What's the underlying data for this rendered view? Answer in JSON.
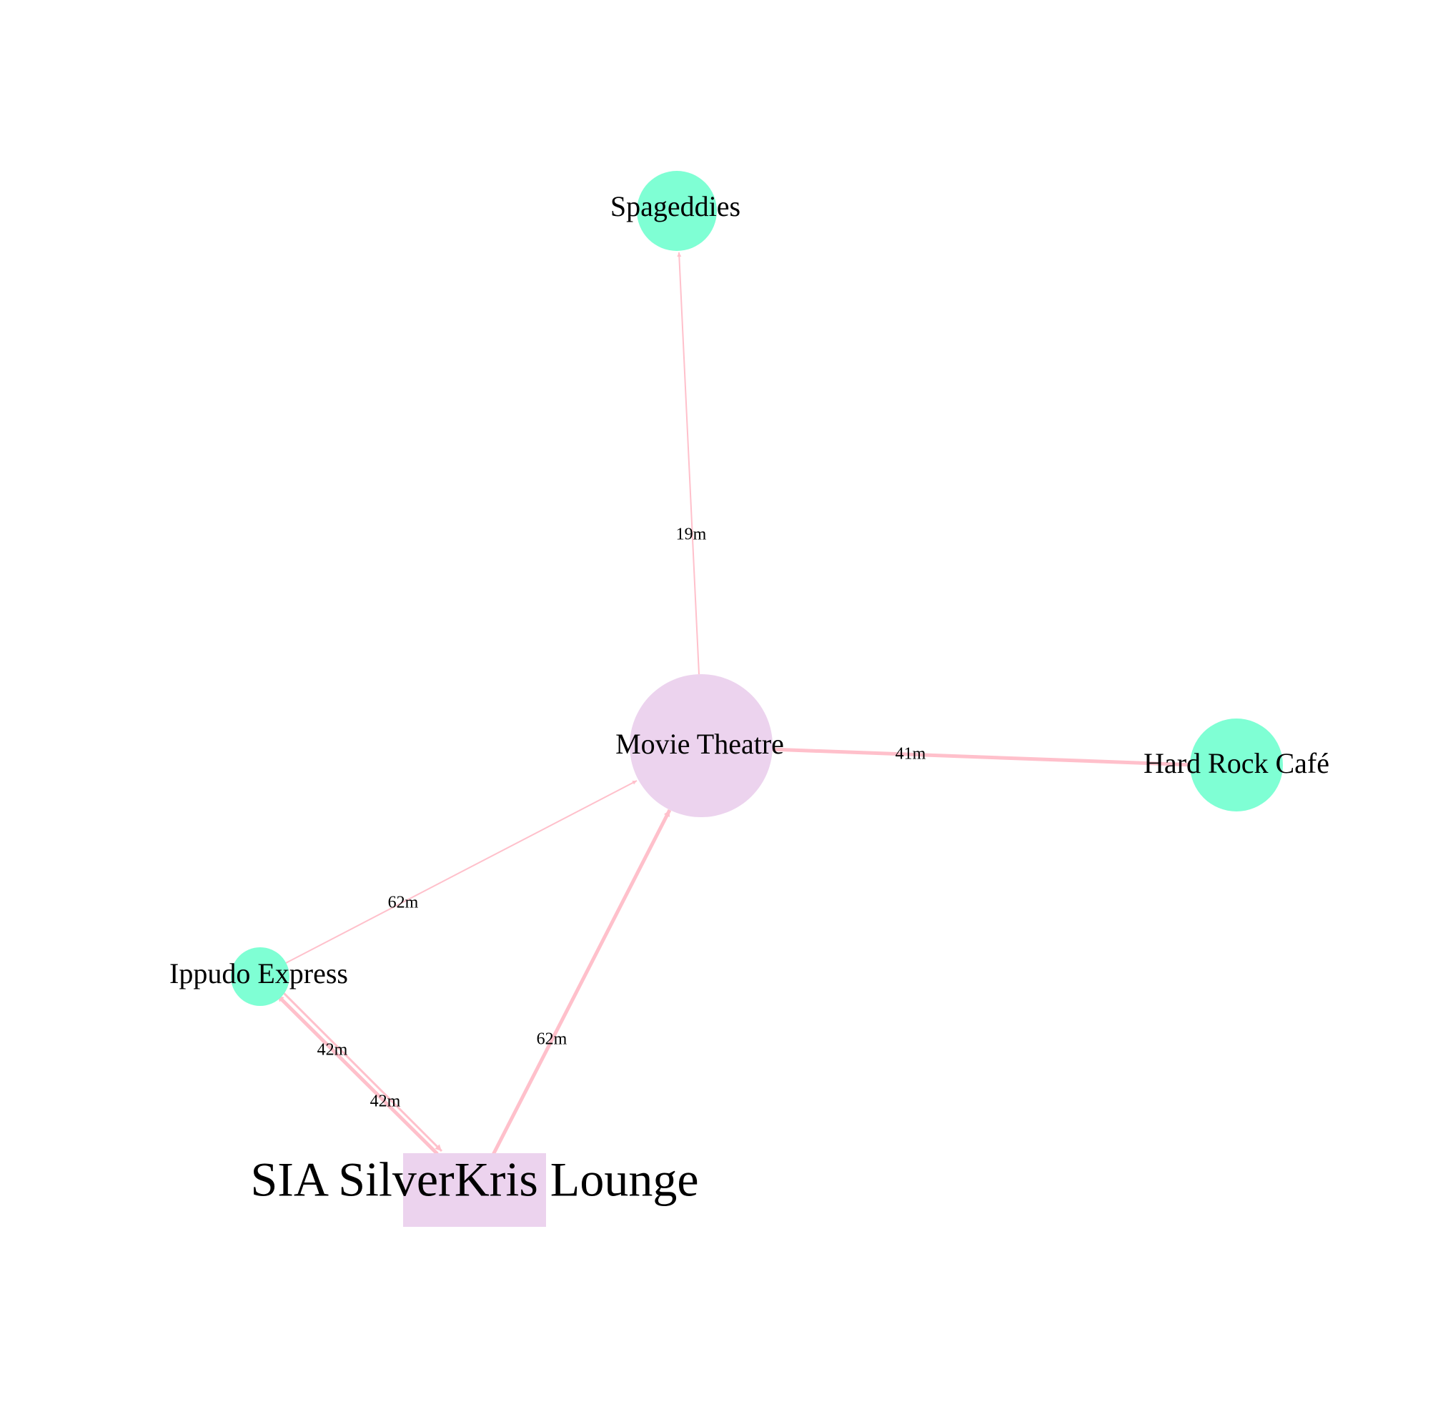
{
  "graph": {
    "colors": {
      "edge": "#ffc0cb",
      "node_green": "#7fffd4",
      "node_pink": "#ecd3ee",
      "label": "#000000"
    },
    "nodes": {
      "spageddies": {
        "label": "Spageddies",
        "shape": "circle"
      },
      "movie_theatre": {
        "label": "Movie Theatre",
        "shape": "circle"
      },
      "hard_rock_cafe": {
        "label": "Hard Rock Café",
        "shape": "circle"
      },
      "ippudo_express": {
        "label": "Ippudo Express",
        "shape": "circle"
      },
      "sia_silverkris_lounge": {
        "label": "SIA SilverKris Lounge",
        "shape": "rectangle"
      }
    },
    "edges": {
      "theatre_to_spageddies": {
        "from": "Movie Theatre",
        "to": "Spageddies",
        "label": "19m",
        "directed": true
      },
      "theatre_hardrock": {
        "from": "Movie Theatre",
        "to": "Hard Rock Café",
        "label": "41m",
        "directed": false
      },
      "ippudo_to_theatre": {
        "from": "Ippudo Express",
        "to": "Movie Theatre",
        "label": "62m",
        "directed": true
      },
      "lounge_to_theatre": {
        "from": "SIA SilverKris Lounge",
        "to": "Movie Theatre",
        "label": "62m",
        "directed": true
      },
      "lounge_to_ippudo": {
        "from": "SIA SilverKris Lounge",
        "to": "Ippudo Express",
        "label": "42m",
        "directed": true
      },
      "ippudo_to_lounge": {
        "from": "Ippudo Express",
        "to": "SIA SilverKris Lounge",
        "label": "42m",
        "directed": true
      }
    }
  }
}
